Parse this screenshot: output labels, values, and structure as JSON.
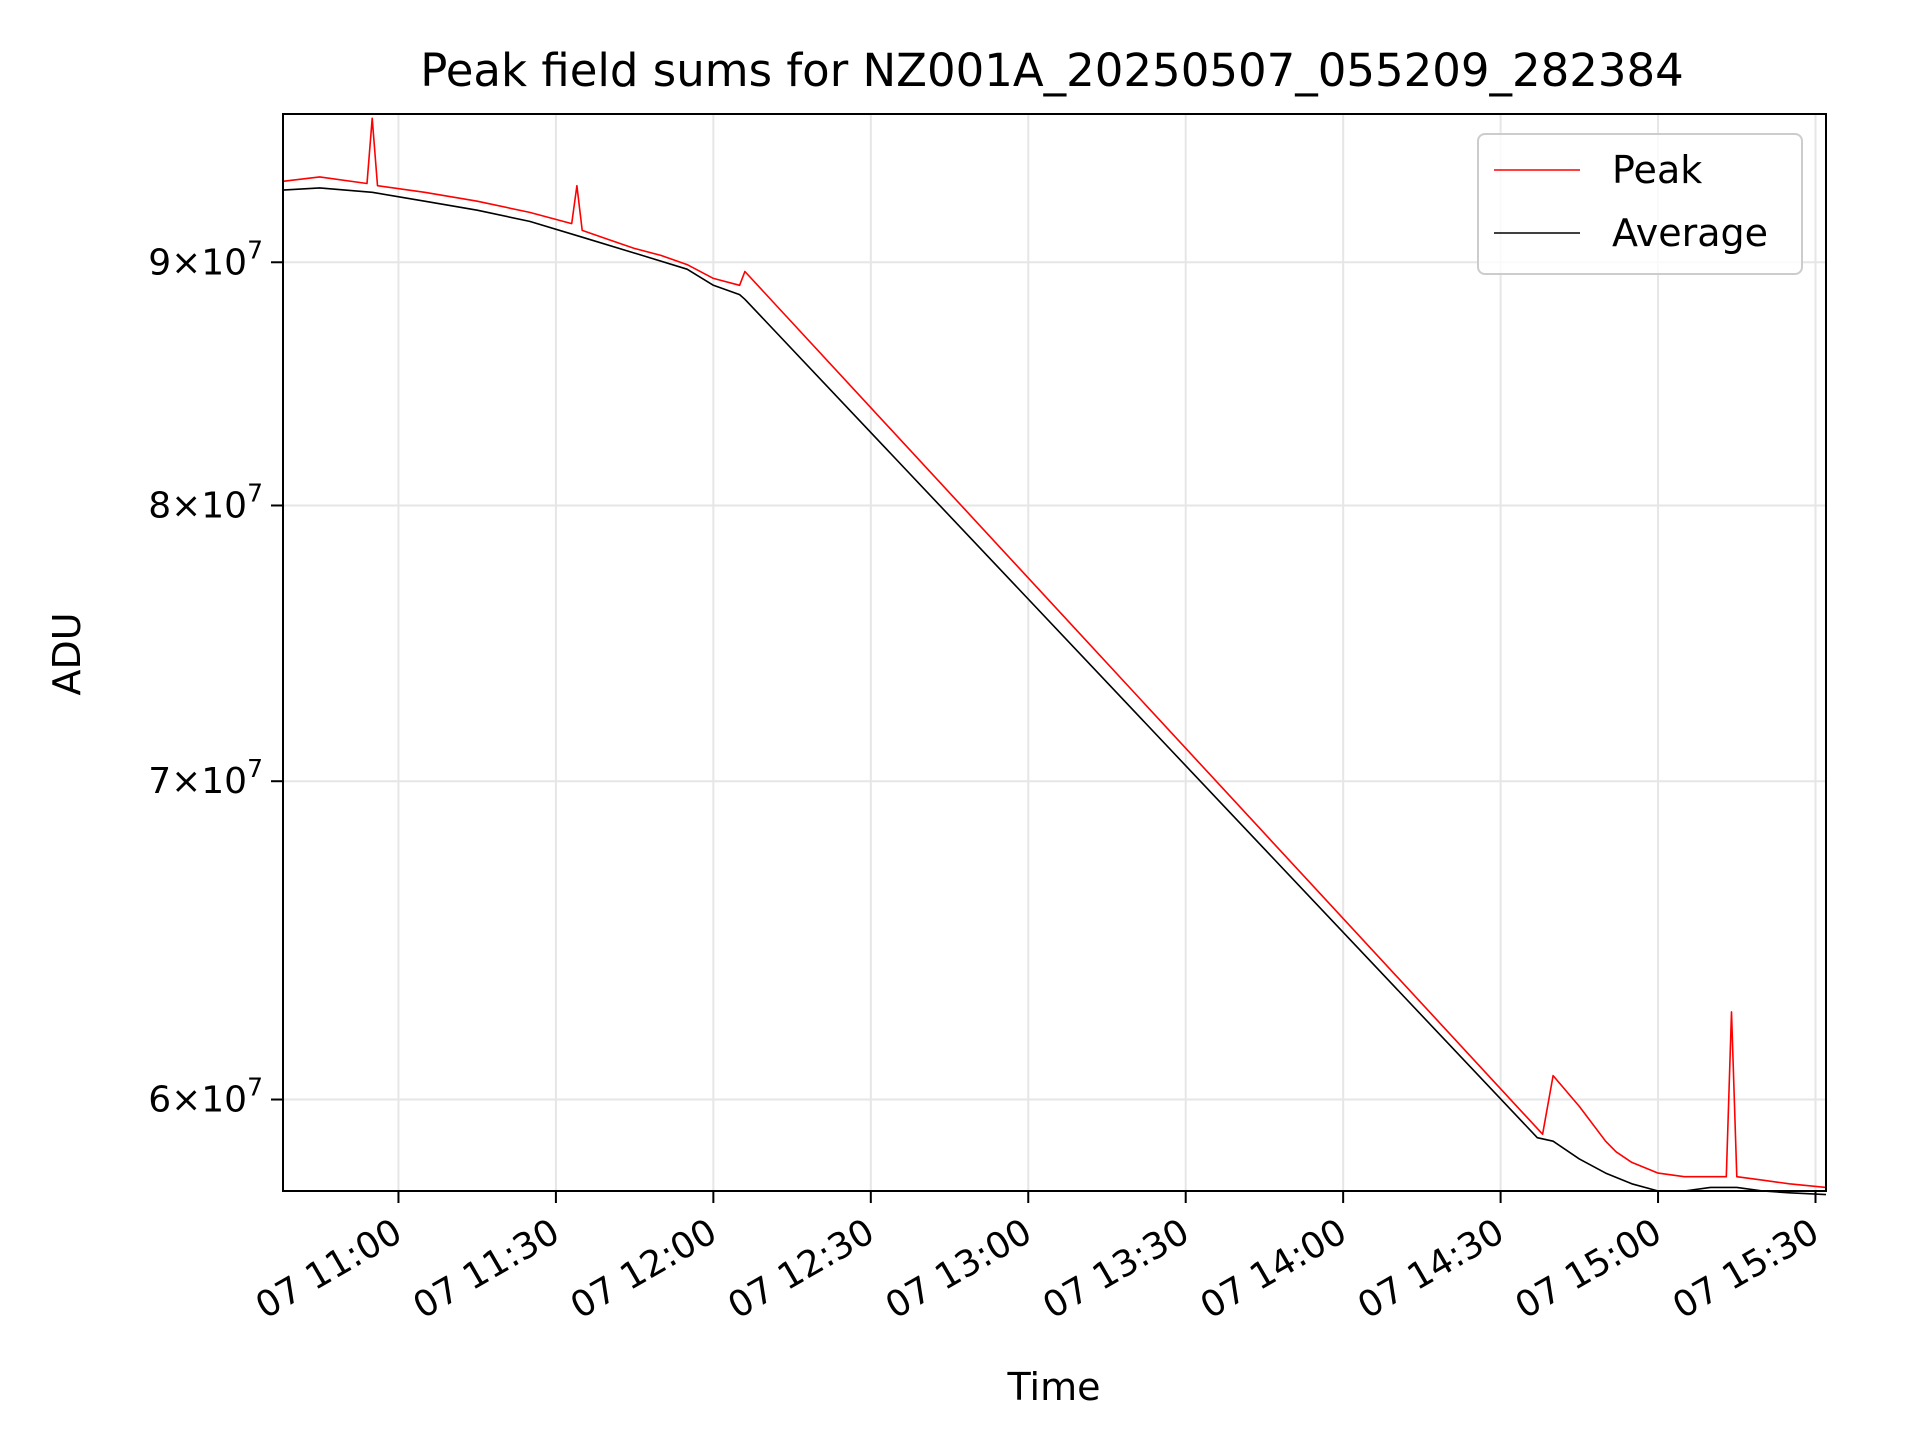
{
  "chart_data": {
    "type": "line",
    "title": "Peak field sums for NZ001A_20250507_055209_282384",
    "xlabel": "Time",
    "ylabel": "ADU",
    "yscale": "log",
    "grid": true,
    "legend_position": "top-right",
    "xlim": [
      "07 10:38",
      "07 15:32"
    ],
    "ylim": [
      57400000,
      96700000
    ],
    "x_ticks": [
      "07 11:00",
      "07 11:30",
      "07 12:00",
      "07 12:30",
      "07 13:00",
      "07 13:30",
      "07 14:00",
      "07 14:30",
      "07 15:00",
      "07 15:30"
    ],
    "y_ticks": [
      {
        "value": 60000000,
        "mantissa": "6",
        "exponent": "7"
      },
      {
        "value": 70000000,
        "mantissa": "7",
        "exponent": "7"
      },
      {
        "value": 80000000,
        "mantissa": "8",
        "exponent": "7"
      },
      {
        "value": 90000000,
        "mantissa": "9",
        "exponent": "7"
      }
    ],
    "series": [
      {
        "name": "Peak",
        "color": "#ff0000",
        "x": [
          "07 10:38",
          "07 10:45",
          "07 10:54",
          "07 10:55",
          "07 10:56",
          "07 11:05",
          "07 11:15",
          "07 11:25",
          "07 11:33",
          "07 11:34",
          "07 11:35",
          "07 11:40",
          "07 11:45",
          "07 11:50",
          "07 11:55",
          "07 12:00",
          "07 12:05",
          "07 12:06",
          "07 14:38",
          "07 14:40",
          "07 14:45",
          "07 14:50",
          "07 14:52",
          "07 14:55",
          "07 15:00",
          "07 15:05",
          "07 15:10",
          "07 15:13",
          "07 15:14",
          "07 15:15",
          "07 15:20",
          "07 15:25",
          "07 15:32"
        ],
        "y": [
          93600000,
          93800000,
          93500000,
          96500000,
          93400000,
          93100000,
          92700000,
          92200000,
          91700000,
          93400000,
          91400000,
          91000000,
          90600000,
          90300000,
          89900000,
          89300000,
          89000000,
          89600000,
          59000000,
          60700000,
          59800000,
          58800000,
          58500000,
          58200000,
          57900000,
          57800000,
          57800000,
          57800000,
          62600000,
          57800000,
          57700000,
          57600000,
          57500000
        ]
      },
      {
        "name": "Average",
        "color": "#000000",
        "x": [
          "07 10:38",
          "07 10:45",
          "07 10:55",
          "07 11:05",
          "07 11:15",
          "07 11:25",
          "07 11:35",
          "07 11:45",
          "07 11:55",
          "07 12:00",
          "07 12:05",
          "07 12:06",
          "07 14:37",
          "07 14:40",
          "07 14:45",
          "07 14:50",
          "07 14:55",
          "07 15:00",
          "07 15:05",
          "07 15:10",
          "07 15:15",
          "07 15:20",
          "07 15:25",
          "07 15:32"
        ],
        "y": [
          93200000,
          93300000,
          93100000,
          92700000,
          92300000,
          91800000,
          91100000,
          90400000,
          89700000,
          89000000,
          88600000,
          88400000,
          58900000,
          58800000,
          58300000,
          57900000,
          57600000,
          57400000,
          57400000,
          57500000,
          57500000,
          57400000,
          57350000,
          57300000
        ]
      }
    ]
  }
}
